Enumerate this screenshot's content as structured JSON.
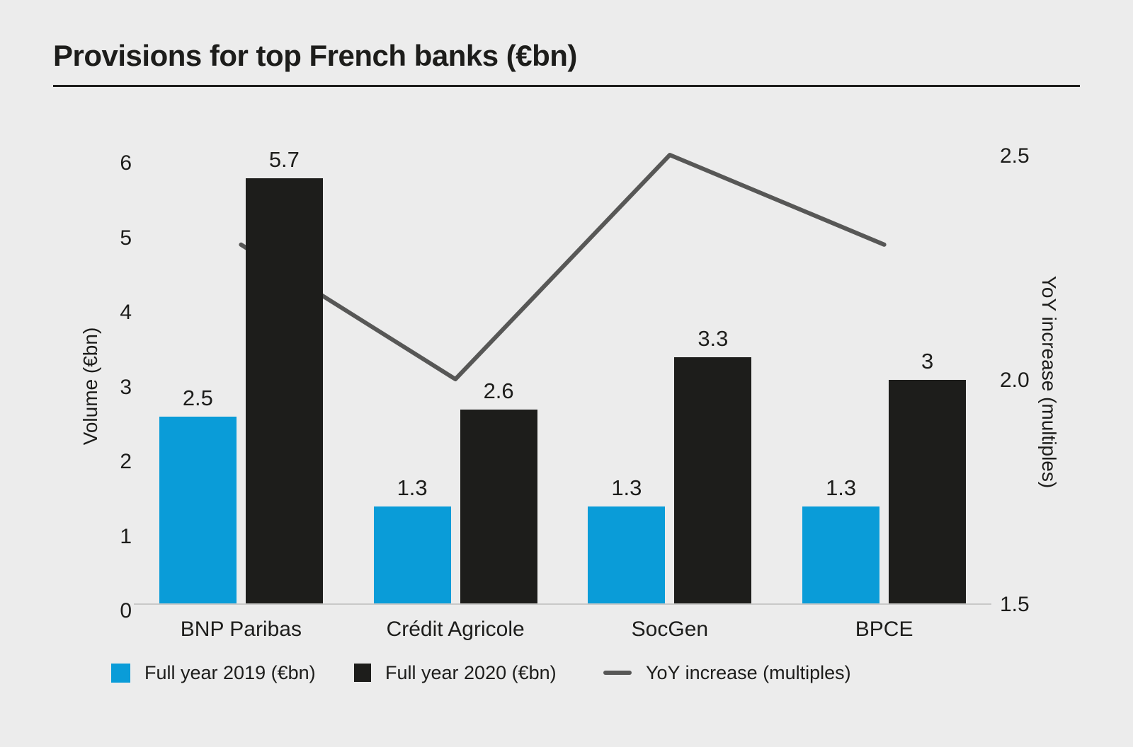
{
  "title": "Provisions for top French banks (€bn)",
  "colors": {
    "background": "#ececec",
    "bar_2019": "#0a9cd8",
    "bar_2020": "#1d1d1b",
    "line": "#575756",
    "axis_line": "#c9c9c8",
    "text": "#1d1d1b"
  },
  "chart_data": {
    "type": "bar",
    "subtype": "grouped bars with secondary-axis line",
    "categories": [
      "BNP Paribas",
      "Crédit Agricole",
      "SocGen",
      "BPCE"
    ],
    "series": [
      {
        "name": "Full year 2019 (€bn)",
        "kind": "bar",
        "color": "#0a9cd8",
        "axis": "left",
        "values": [
          2.5,
          1.3,
          1.3,
          1.3
        ],
        "value_labels": [
          "2.5",
          "1.3",
          "1.3",
          "1.3"
        ]
      },
      {
        "name": "Full year 2020 (€bn)",
        "kind": "bar",
        "color": "#1d1d1b",
        "axis": "left",
        "values": [
          5.7,
          2.6,
          3.3,
          3
        ],
        "value_labels": [
          "5.7",
          "2.6",
          "3.3",
          "3"
        ]
      },
      {
        "name": "YoY increase (multiples)",
        "kind": "line",
        "color": "#575756",
        "axis": "right",
        "values": [
          2.3,
          2.0,
          2.5,
          2.3
        ]
      }
    ],
    "left_axis": {
      "title": "Volume (€bn)",
      "ticks": [
        "0",
        "1",
        "2",
        "3",
        "4",
        "5",
        "6"
      ],
      "range": [
        0,
        6
      ]
    },
    "right_axis": {
      "title": "YoY increase (multiples)",
      "ticks": [
        "1.5",
        "2.0",
        "2.5"
      ],
      "range": [
        1.5,
        2.5
      ]
    },
    "grid": false,
    "legend_position": "bottom"
  },
  "legend": {
    "items": [
      {
        "label": "Full year 2019 (€bn)",
        "swatch": "blue-square"
      },
      {
        "label": "Full year 2020 (€bn)",
        "swatch": "black-square"
      },
      {
        "label": "YoY increase (multiples)",
        "swatch": "gray-line"
      }
    ]
  }
}
